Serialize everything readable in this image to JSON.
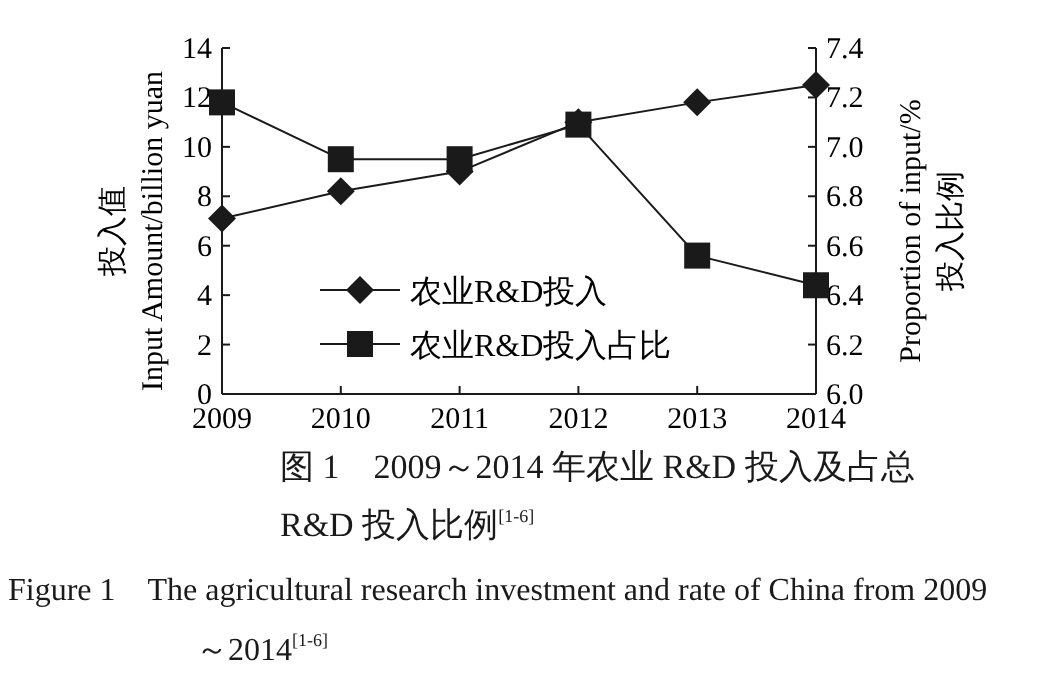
{
  "chart_data": {
    "type": "line",
    "title": "图 1　2009～2014 年农业 R&D 投入及占总 R&D 投入比例$^{[1-6]}$",
    "annotations": [
      "Figure 1　The agricultural research investment and rate of China from 2009～2014$^{[1-6]}$"
    ],
    "x": [
      2009,
      2010,
      2011,
      2012,
      2013,
      2014
    ],
    "xlim": [
      2009,
      2014
    ],
    "xticks": [
      2009,
      2010,
      2011,
      2012,
      2013,
      2014
    ],
    "ylim": [
      0,
      14
    ],
    "yticks": [
      0,
      2,
      4,
      6,
      8,
      10,
      12,
      14
    ],
    "y2lim": [
      6.0,
      7.4
    ],
    "y2ticks": [
      {
        "value": 6.0,
        "label": "6.0"
      },
      {
        "value": 6.2,
        "label": "6.2"
      },
      {
        "value": 6.4,
        "label": "6.4"
      },
      {
        "value": 6.6,
        "label": "6.6"
      },
      {
        "value": 6.8,
        "label": "6.8"
      },
      {
        "value": 7.0,
        "label": "7.0"
      },
      {
        "value": 7.2,
        "label": "7.2"
      },
      {
        "value": 7.4,
        "label": "7.4"
      }
    ],
    "ylabel": "投入值\nInput Amount/billion yuan",
    "y2label": "Proportion of input/%\n投入比例",
    "legend": "bottom left",
    "grid": false,
    "line_style": "solid",
    "series": [
      {
        "name": "农业R&D投入",
        "color": "#1a1a1a",
        "marker": "diamond",
        "values": [
          7.1,
          8.2,
          9.0,
          11.0,
          11.8,
          12.5
        ]
      },
      {
        "name": "农业R&D投入占比",
        "color": "#1a1a1a",
        "marker": "square",
        "axis": "y2",
        "values": [
          7.18,
          6.95,
          6.95,
          7.09,
          6.56,
          6.44
        ]
      }
    ]
  }
}
